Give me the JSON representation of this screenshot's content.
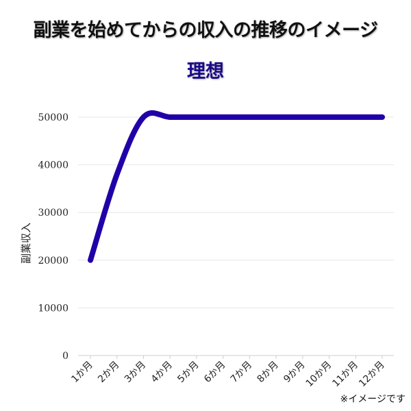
{
  "header": {
    "title": "副業を始めてからの収入の推移のイメージ",
    "subtitle": "理想"
  },
  "note": "※イメージです",
  "colors": {
    "line": "#2200a8",
    "grid": "#e6e6e6",
    "subtitle": "#1a0a8a"
  },
  "chart_data": {
    "type": "line",
    "categories": [
      "1か月",
      "2か月",
      "3か月",
      "4か月",
      "5か月",
      "6か月",
      "7か月",
      "8か月",
      "9か月",
      "10か月",
      "11か月",
      "12か月"
    ],
    "series": [
      {
        "values": [
          20000,
          38000,
          50000,
          50000,
          50000,
          50000,
          50000,
          50000,
          50000,
          50000,
          50000,
          50000
        ]
      }
    ],
    "ylabel": "副業収入",
    "xlabel": "",
    "ylim": [
      0,
      50000
    ],
    "yticks": [
      0,
      10000,
      20000,
      30000,
      40000,
      50000
    ],
    "grid": true,
    "smooth": true
  }
}
